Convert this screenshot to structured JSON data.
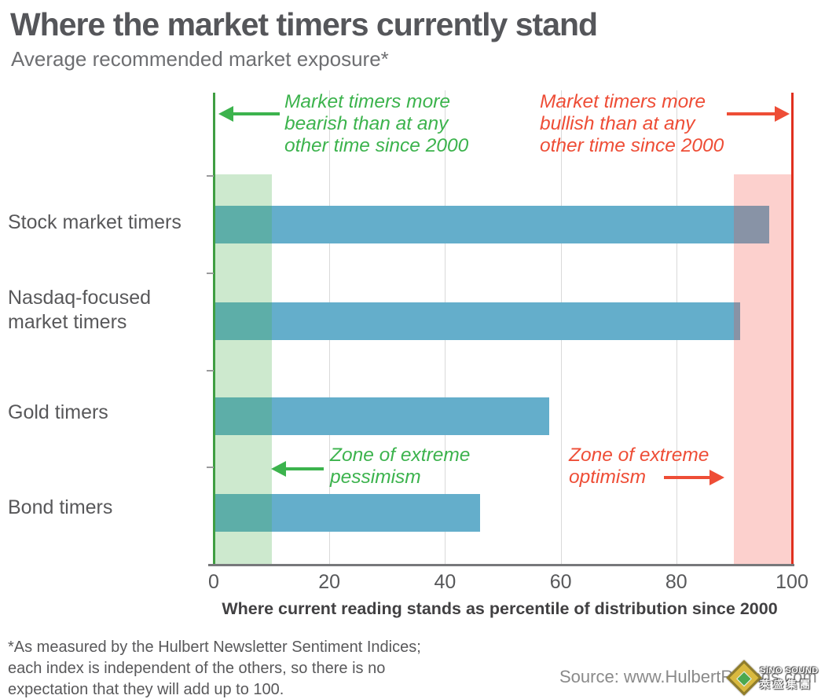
{
  "header": {
    "title": "Where the market timers currently stand",
    "subtitle": "Average recommended market exposure*"
  },
  "chart_data": {
    "type": "bar",
    "orientation": "horizontal",
    "categories": [
      "Stock market timers",
      "Nasdaq-focused market timers",
      "Gold timers",
      "Bond timers"
    ],
    "values": [
      96,
      91,
      58,
      46
    ],
    "title": "Where the market timers currently stand",
    "xlabel": "Where current reading stands as percentile of distribution since 2000",
    "ylabel": "",
    "xlim": [
      0,
      100
    ],
    "x_ticks": [
      0,
      20,
      40,
      60,
      80,
      100
    ],
    "gridline_ticks": [
      20,
      40,
      60,
      80
    ],
    "grid": true,
    "bar_color": "#64aecb",
    "left_axis_color": "#3f9e42",
    "right_axis_color": "#e0301e",
    "zones": [
      {
        "name": "zone-extreme-pessimism",
        "range": [
          0,
          10
        ],
        "color": "rgba(76,175,80,0.28)"
      },
      {
        "name": "zone-extreme-optimism",
        "range": [
          90,
          100
        ],
        "color": "rgba(244,67,54,0.25)"
      }
    ]
  },
  "annotations": {
    "top_left": {
      "text": "Market timers more\nbearish than at any\nother time since 2000",
      "color": "#3cb34d"
    },
    "top_right": {
      "text": "Market timers more\nbullish than at any\nother time since 2000",
      "color": "#ee4d36"
    },
    "mid_left": {
      "text": "Zone of extreme\npessimism",
      "color": "#3cb34d"
    },
    "mid_right": {
      "text": "Zone of extreme\noptimism",
      "color": "#ee4d36"
    }
  },
  "footnote": {
    "text": "*As measured by the Hulbert Newsletter Sentiment Indices;\neach index is independent of the others, so there is no\nexpectation that they will add up to 100."
  },
  "source": {
    "text": "Source: www.HulbertRatings.com"
  },
  "watermark": {
    "line1": "SiNO SOUND",
    "line2": "萊盛集團"
  }
}
